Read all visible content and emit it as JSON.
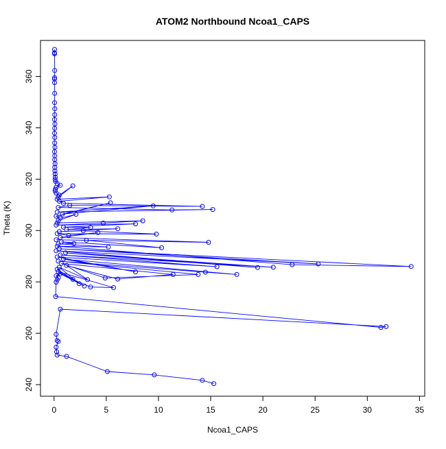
{
  "chart_data": {
    "type": "line",
    "title": "ATOM2 Northbound Ncoa1_CAPS",
    "xlabel": "Ncoa1_CAPS",
    "ylabel": "Theta (K)",
    "xlim": [
      -1.3,
      35.5
    ],
    "ylim": [
      235.5,
      374
    ],
    "x_ticks": [
      0,
      5,
      10,
      15,
      20,
      25,
      30,
      35
    ],
    "y_ticks": [
      240,
      260,
      280,
      300,
      320,
      340,
      360
    ],
    "x_tick_labels": [
      "0",
      "5",
      "10",
      "15",
      "20",
      "25",
      "30",
      "35"
    ],
    "y_tick_labels": [
      "240",
      "260",
      "280",
      "300",
      "320",
      "340",
      "360"
    ],
    "grid": false,
    "series": [
      {
        "color": "#0000ff",
        "marker": "open-circle",
        "x": [
          0.05,
          0.04,
          0.05,
          0.06,
          0.05,
          0.04,
          0.05,
          0.06,
          0.05,
          0.07,
          0.06,
          0.05,
          0.08,
          0.06,
          0.05,
          0.07,
          0.06,
          0.08,
          0.05,
          0.07,
          0.06,
          0.09,
          0.07,
          0.08,
          0.1,
          0.12,
          0.1,
          0.15,
          0.3,
          0.6,
          0.2,
          0.12,
          0.1,
          0.2,
          0.5,
          1.8,
          0.4,
          0.3,
          5.3,
          0.5,
          0.9,
          14.2,
          1.5,
          0.4,
          11.3,
          15.2,
          0.3,
          9.5,
          0.8,
          5.4,
          0.2,
          0.6,
          2.1,
          0.4,
          0.3,
          8.5,
          4.7,
          0.2,
          7.8,
          0.9,
          3.5,
          1.2,
          6.1,
          0.5,
          2.8,
          9.8,
          0.3,
          1.4,
          4.2,
          0.6,
          14.8,
          0.2,
          3.1,
          10.3,
          0.7,
          1.9,
          0.4,
          5.2,
          0.3,
          22.8,
          34.2,
          0.5,
          25.3,
          0.2,
          19.5,
          1.1,
          21.0,
          0.6,
          15.6,
          0.3,
          7.8,
          0.9,
          17.5,
          14.5,
          0.4,
          13.8,
          4.9,
          0.7,
          11.4,
          6.1,
          1.2,
          3.2,
          0.5,
          2.4,
          0.3,
          1.8,
          3.5,
          5.7,
          0.4,
          2.9,
          0.6,
          0.2,
          0.4,
          0.3,
          0.2,
          0.15,
          31.3,
          31.8,
          0.6,
          0.2,
          0.3,
          0.4,
          0.2,
          0.25,
          0.3,
          1.2,
          5.1,
          9.6,
          14.2,
          15.3
        ],
        "y": [
          370.5,
          369.2,
          368.8,
          362.3,
          359.5,
          359.0,
          357.6,
          353.4,
          349.8,
          347.4,
          345.1,
          343.2,
          341.5,
          339.8,
          337.9,
          336.2,
          334.1,
          332.4,
          330.7,
          329.1,
          327.6,
          326.0,
          324.6,
          323.2,
          322.0,
          320.8,
          319.9,
          319.1,
          318.3,
          317.6,
          316.8,
          316.1,
          315.4,
          314.6,
          313.8,
          317.4,
          313.0,
          312.2,
          313.1,
          311.4,
          310.6,
          309.4,
          309.8,
          309.0,
          308.0,
          308.2,
          307.2,
          309.6,
          306.4,
          310.8,
          305.6,
          304.8,
          306.3,
          303.9,
          303.0,
          303.8,
          302.9,
          302.1,
          302.6,
          301.3,
          301.2,
          300.4,
          300.7,
          299.6,
          299.9,
          298.6,
          298.8,
          298.1,
          299.2,
          297.3,
          295.4,
          296.4,
          296.2,
          293.3,
          295.6,
          294.9,
          294.8,
          293.6,
          293.9,
          286.7,
          286.0,
          292.9,
          287.0,
          292.1,
          285.6,
          291.3,
          285.7,
          290.5,
          285.9,
          289.7,
          283.9,
          288.9,
          282.9,
          283.8,
          288.1,
          282.9,
          281.5,
          287.2,
          282.9,
          281.1,
          286.4,
          280.9,
          285.7,
          279.3,
          284.9,
          281.0,
          278.0,
          277.8,
          284.0,
          278.4,
          283.2,
          282.4,
          281.6,
          280.8,
          279.9,
          274.3,
          262.3,
          262.6,
          269.4,
          259.6,
          257.2,
          256.8,
          254.6,
          252.8,
          251.5,
          251.0,
          245.1,
          243.8,
          241.7,
          240.4
        ]
      }
    ]
  }
}
